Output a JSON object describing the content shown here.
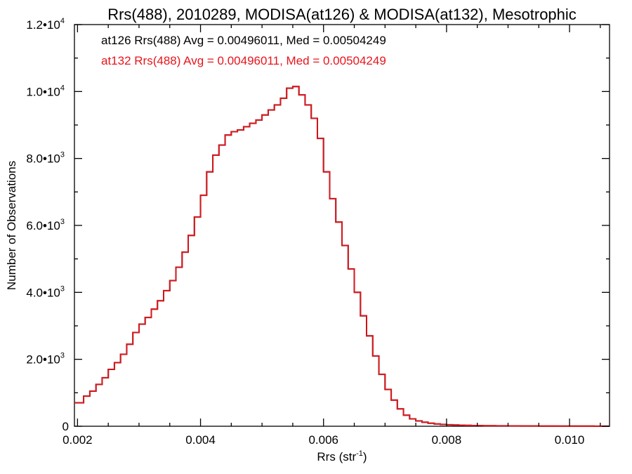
{
  "chart_data": {
    "type": "line",
    "title": "Rrs(488), 2010289, MODISA(at126) & MODISA(at132), Mesotrophic",
    "xlabel": "Rrs (str",
    "xlabel_sup": "-1",
    "xlabel_end": ")",
    "ylabel": "Number of Observations",
    "xlim": [
      0.00195,
      0.01065
    ],
    "ylim": [
      0,
      12000
    ],
    "x_ticks": [
      {
        "value": 0.002,
        "label": "0.002"
      },
      {
        "value": 0.004,
        "label": "0.004"
      },
      {
        "value": 0.006,
        "label": "0.006"
      },
      {
        "value": 0.008,
        "label": "0.008"
      },
      {
        "value": 0.01,
        "label": "0.010"
      }
    ],
    "y_ticks": [
      {
        "value": 0,
        "mant": "0",
        "exp": ""
      },
      {
        "value": 2000,
        "mant": "2.0•10",
        "exp": "3"
      },
      {
        "value": 4000,
        "mant": "4.0•10",
        "exp": "3"
      },
      {
        "value": 6000,
        "mant": "6.0•10",
        "exp": "3"
      },
      {
        "value": 8000,
        "mant": "8.0•10",
        "exp": "3"
      },
      {
        "value": 10000,
        "mant": "1.0•10",
        "exp": "4"
      },
      {
        "value": 12000,
        "mant": "1.2•10",
        "exp": "4"
      }
    ],
    "annotations": [
      {
        "text": "at126 Rrs(488) Avg = 0.00496011, Med = 0.00504249",
        "color": "#000000"
      },
      {
        "text": "at132 Rrs(488) Avg = 0.00496011, Med = 0.00504249",
        "color": "#e8141b"
      }
    ],
    "series": [
      {
        "name": "at126",
        "color": "#000000",
        "style": "step",
        "x": [
          0.00195,
          0.0021,
          0.0022,
          0.0023,
          0.0024,
          0.0025,
          0.0026,
          0.0027,
          0.0028,
          0.0029,
          0.003,
          0.0031,
          0.0032,
          0.0033,
          0.0034,
          0.0035,
          0.0036,
          0.0037,
          0.0038,
          0.0039,
          0.004,
          0.0041,
          0.0042,
          0.0043,
          0.0044,
          0.0045,
          0.0046,
          0.0047,
          0.0048,
          0.0049,
          0.005,
          0.0051,
          0.0052,
          0.0053,
          0.0054,
          0.0055,
          0.0056,
          0.0057,
          0.0058,
          0.0059,
          0.006,
          0.0061,
          0.0062,
          0.0063,
          0.0064,
          0.0065,
          0.0066,
          0.0067,
          0.0068,
          0.0069,
          0.007,
          0.0071,
          0.0072,
          0.0073,
          0.0074,
          0.0075,
          0.0076,
          0.0077,
          0.0078,
          0.0079,
          0.008,
          0.0081,
          0.0082,
          0.0083,
          0.0084,
          0.0086,
          0.0088,
          0.009,
          0.0092,
          0.0095,
          0.0098,
          0.0101,
          0.0104,
          0.01065
        ],
        "y": [
          700,
          900,
          1050,
          1250,
          1450,
          1700,
          1900,
          2150,
          2450,
          2800,
          3050,
          3250,
          3500,
          3750,
          4050,
          4350,
          4750,
          5200,
          5700,
          6250,
          6900,
          7600,
          8100,
          8400,
          8700,
          8800,
          8850,
          8950,
          9050,
          9150,
          9300,
          9450,
          9600,
          9800,
          10100,
          10150,
          9900,
          9600,
          9200,
          8600,
          7600,
          6800,
          6100,
          5400,
          4700,
          4000,
          3300,
          2700,
          2100,
          1550,
          1100,
          780,
          520,
          330,
          220,
          160,
          120,
          90,
          70,
          55,
          45,
          38,
          30,
          25,
          20,
          15,
          12,
          10,
          8,
          6,
          5,
          4,
          3,
          2
        ]
      },
      {
        "name": "at132",
        "color": "#e8141b",
        "style": "step",
        "x": [
          0.00195,
          0.0021,
          0.0022,
          0.0023,
          0.0024,
          0.0025,
          0.0026,
          0.0027,
          0.0028,
          0.0029,
          0.003,
          0.0031,
          0.0032,
          0.0033,
          0.0034,
          0.0035,
          0.0036,
          0.0037,
          0.0038,
          0.0039,
          0.004,
          0.0041,
          0.0042,
          0.0043,
          0.0044,
          0.0045,
          0.0046,
          0.0047,
          0.0048,
          0.0049,
          0.005,
          0.0051,
          0.0052,
          0.0053,
          0.0054,
          0.0055,
          0.0056,
          0.0057,
          0.0058,
          0.0059,
          0.006,
          0.0061,
          0.0062,
          0.0063,
          0.0064,
          0.0065,
          0.0066,
          0.0067,
          0.0068,
          0.0069,
          0.007,
          0.0071,
          0.0072,
          0.0073,
          0.0074,
          0.0075,
          0.0076,
          0.0077,
          0.0078,
          0.0079,
          0.008,
          0.0081,
          0.0082,
          0.0083,
          0.0084,
          0.0086,
          0.0088,
          0.009,
          0.0092,
          0.0095,
          0.0098,
          0.0101,
          0.0104,
          0.01065
        ],
        "y": [
          700,
          900,
          1050,
          1250,
          1450,
          1700,
          1900,
          2150,
          2450,
          2800,
          3050,
          3250,
          3500,
          3750,
          4050,
          4350,
          4750,
          5200,
          5700,
          6250,
          6900,
          7600,
          8100,
          8400,
          8700,
          8800,
          8850,
          8950,
          9050,
          9150,
          9300,
          9450,
          9600,
          9800,
          10100,
          10150,
          9900,
          9600,
          9200,
          8600,
          7600,
          6800,
          6100,
          5400,
          4700,
          4000,
          3300,
          2700,
          2100,
          1550,
          1100,
          780,
          520,
          330,
          220,
          160,
          120,
          90,
          70,
          55,
          45,
          38,
          30,
          25,
          20,
          15,
          12,
          10,
          8,
          6,
          5,
          4,
          3,
          2
        ]
      }
    ]
  }
}
